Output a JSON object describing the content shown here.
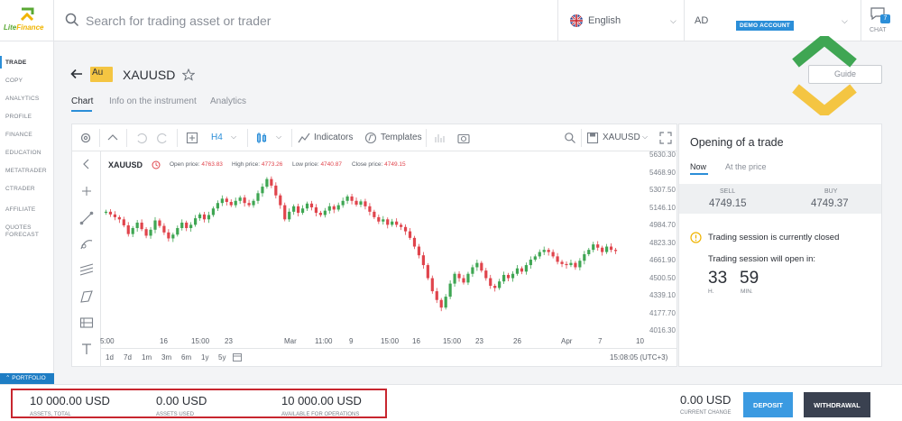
{
  "brand": {
    "name_part1": "Lite",
    "name_part2": "Finance"
  },
  "header": {
    "search_placeholder": "Search for trading asset or trader",
    "language": "English",
    "account_initials": "AD",
    "account_badge": "DEMO ACCOUNT",
    "chat_count": "7",
    "chat_label": "CHAT"
  },
  "sidebar": {
    "items": [
      {
        "label": "TRADE",
        "active": true
      },
      {
        "label": "COPY"
      },
      {
        "label": "ANALYTICS"
      },
      {
        "label": "PROFILE"
      },
      {
        "label": "FINANCE"
      },
      {
        "label": "EDUCATION"
      },
      {
        "label": "METATRADER"
      },
      {
        "label": "CTRADER"
      },
      {
        "label": "AFFILIATE"
      },
      {
        "label": "QUOTES"
      },
      {
        "label": "FORECAST"
      }
    ],
    "portfolio": "PORTFOLIO"
  },
  "instrument": {
    "badge": "Au",
    "symbol": "XAUUSD",
    "guide_label": "Guide",
    "tabs": [
      "Chart",
      "Info on the instrument",
      "Analytics"
    ]
  },
  "chart_toolbar": {
    "interval": "H4",
    "indicators": "Indicators",
    "templates": "Templates",
    "symbol": "XAUUSD"
  },
  "chart_legend": {
    "symbol": "XAUUSD",
    "open_label": "Open price:",
    "open": "4763.83",
    "high_label": "High price:",
    "high": "4773.26",
    "low_label": "Low price:",
    "low": "4740.87",
    "close_label": "Close price:",
    "close": "4749.15"
  },
  "chart_bottom": {
    "ranges": [
      "1d",
      "7d",
      "1m",
      "3m",
      "6m",
      "1y",
      "5y"
    ],
    "clock": "15:08:05 (UTC+3)"
  },
  "chart_data": {
    "type": "candlestick",
    "title": "",
    "xlabel": "",
    "ylabel": "",
    "ylim": [
      4016.3,
      5630.3
    ],
    "y_ticks": [
      "5630.30",
      "5468.90",
      "5307.50",
      "5146.10",
      "4984.70",
      "4823.30",
      "4661.90",
      "4500.50",
      "4339.10",
      "4177.70",
      "4016.30"
    ],
    "x_ticks": [
      "5:00",
      "16",
      "15:00",
      "23",
      "Mar",
      "11:00",
      "9",
      "15:00",
      "16",
      "15:00",
      "23",
      "26",
      "Apr",
      "7",
      "10"
    ],
    "colors": {
      "up": "#3fa653",
      "down": "#e0444c"
    },
    "series": [
      {
        "values": [
          5110,
          5085,
          5060,
          5040,
          4985,
          4905,
          4960,
          5010,
          4950,
          4890,
          4945,
          5030,
          4980,
          4920,
          4865,
          4900,
          4960,
          5010,
          4960,
          4990,
          5050,
          5085,
          5040,
          5080,
          5140,
          5190,
          5230,
          5200,
          5170,
          5210,
          5240,
          5190,
          5170,
          5210,
          5280,
          5340,
          5410,
          5350,
          5260,
          5170,
          5040,
          5110,
          5160,
          5100,
          5140,
          5185,
          5150,
          5100,
          5080,
          5120,
          5160,
          5130,
          5170,
          5210,
          5250,
          5210,
          5175,
          5205,
          5160,
          5110,
          5060,
          5020,
          5040,
          4990,
          5020,
          4990,
          4970,
          4930,
          4870,
          4790,
          4710,
          4620,
          4500,
          4380,
          4300,
          4230,
          4330,
          4450,
          4540,
          4500,
          4460,
          4540,
          4600,
          4640,
          4570,
          4500,
          4430,
          4410,
          4470,
          4530,
          4500,
          4540,
          4590,
          4560,
          4620,
          4670,
          4700,
          4740,
          4760,
          4740,
          4700,
          4650,
          4630,
          4620,
          4640,
          4600,
          4660,
          4720,
          4760,
          4810,
          4780,
          4740,
          4790,
          4760,
          4749
        ]
      }
    ]
  },
  "trade_panel": {
    "title": "Opening of a trade",
    "tabs": [
      "Now",
      "At the price"
    ],
    "sell_label": "SELL",
    "sell_price": "4749.15",
    "buy_label": "BUY",
    "buy_price": "4749.37",
    "session_closed": "Trading session is currently closed",
    "reopen_label": "Trading session will open in:",
    "hours": "33",
    "hours_unit": "H.",
    "minutes": "59",
    "minutes_unit": "MIN."
  },
  "footer": {
    "assets_total_value": "10 000.00 USD",
    "assets_total_label": "ASSETS, TOTAL",
    "assets_used_value": "0.00 USD",
    "assets_used_label": "ASSETS USED",
    "available_value": "10 000.00 USD",
    "available_label": "AVAILABLE FOR OPERATIONS",
    "current_change_value": "0.00 USD",
    "current_change_label": "CURRENT CHANGE",
    "deposit": "DEPOSIT",
    "withdrawal": "WITHDRAWAL"
  }
}
